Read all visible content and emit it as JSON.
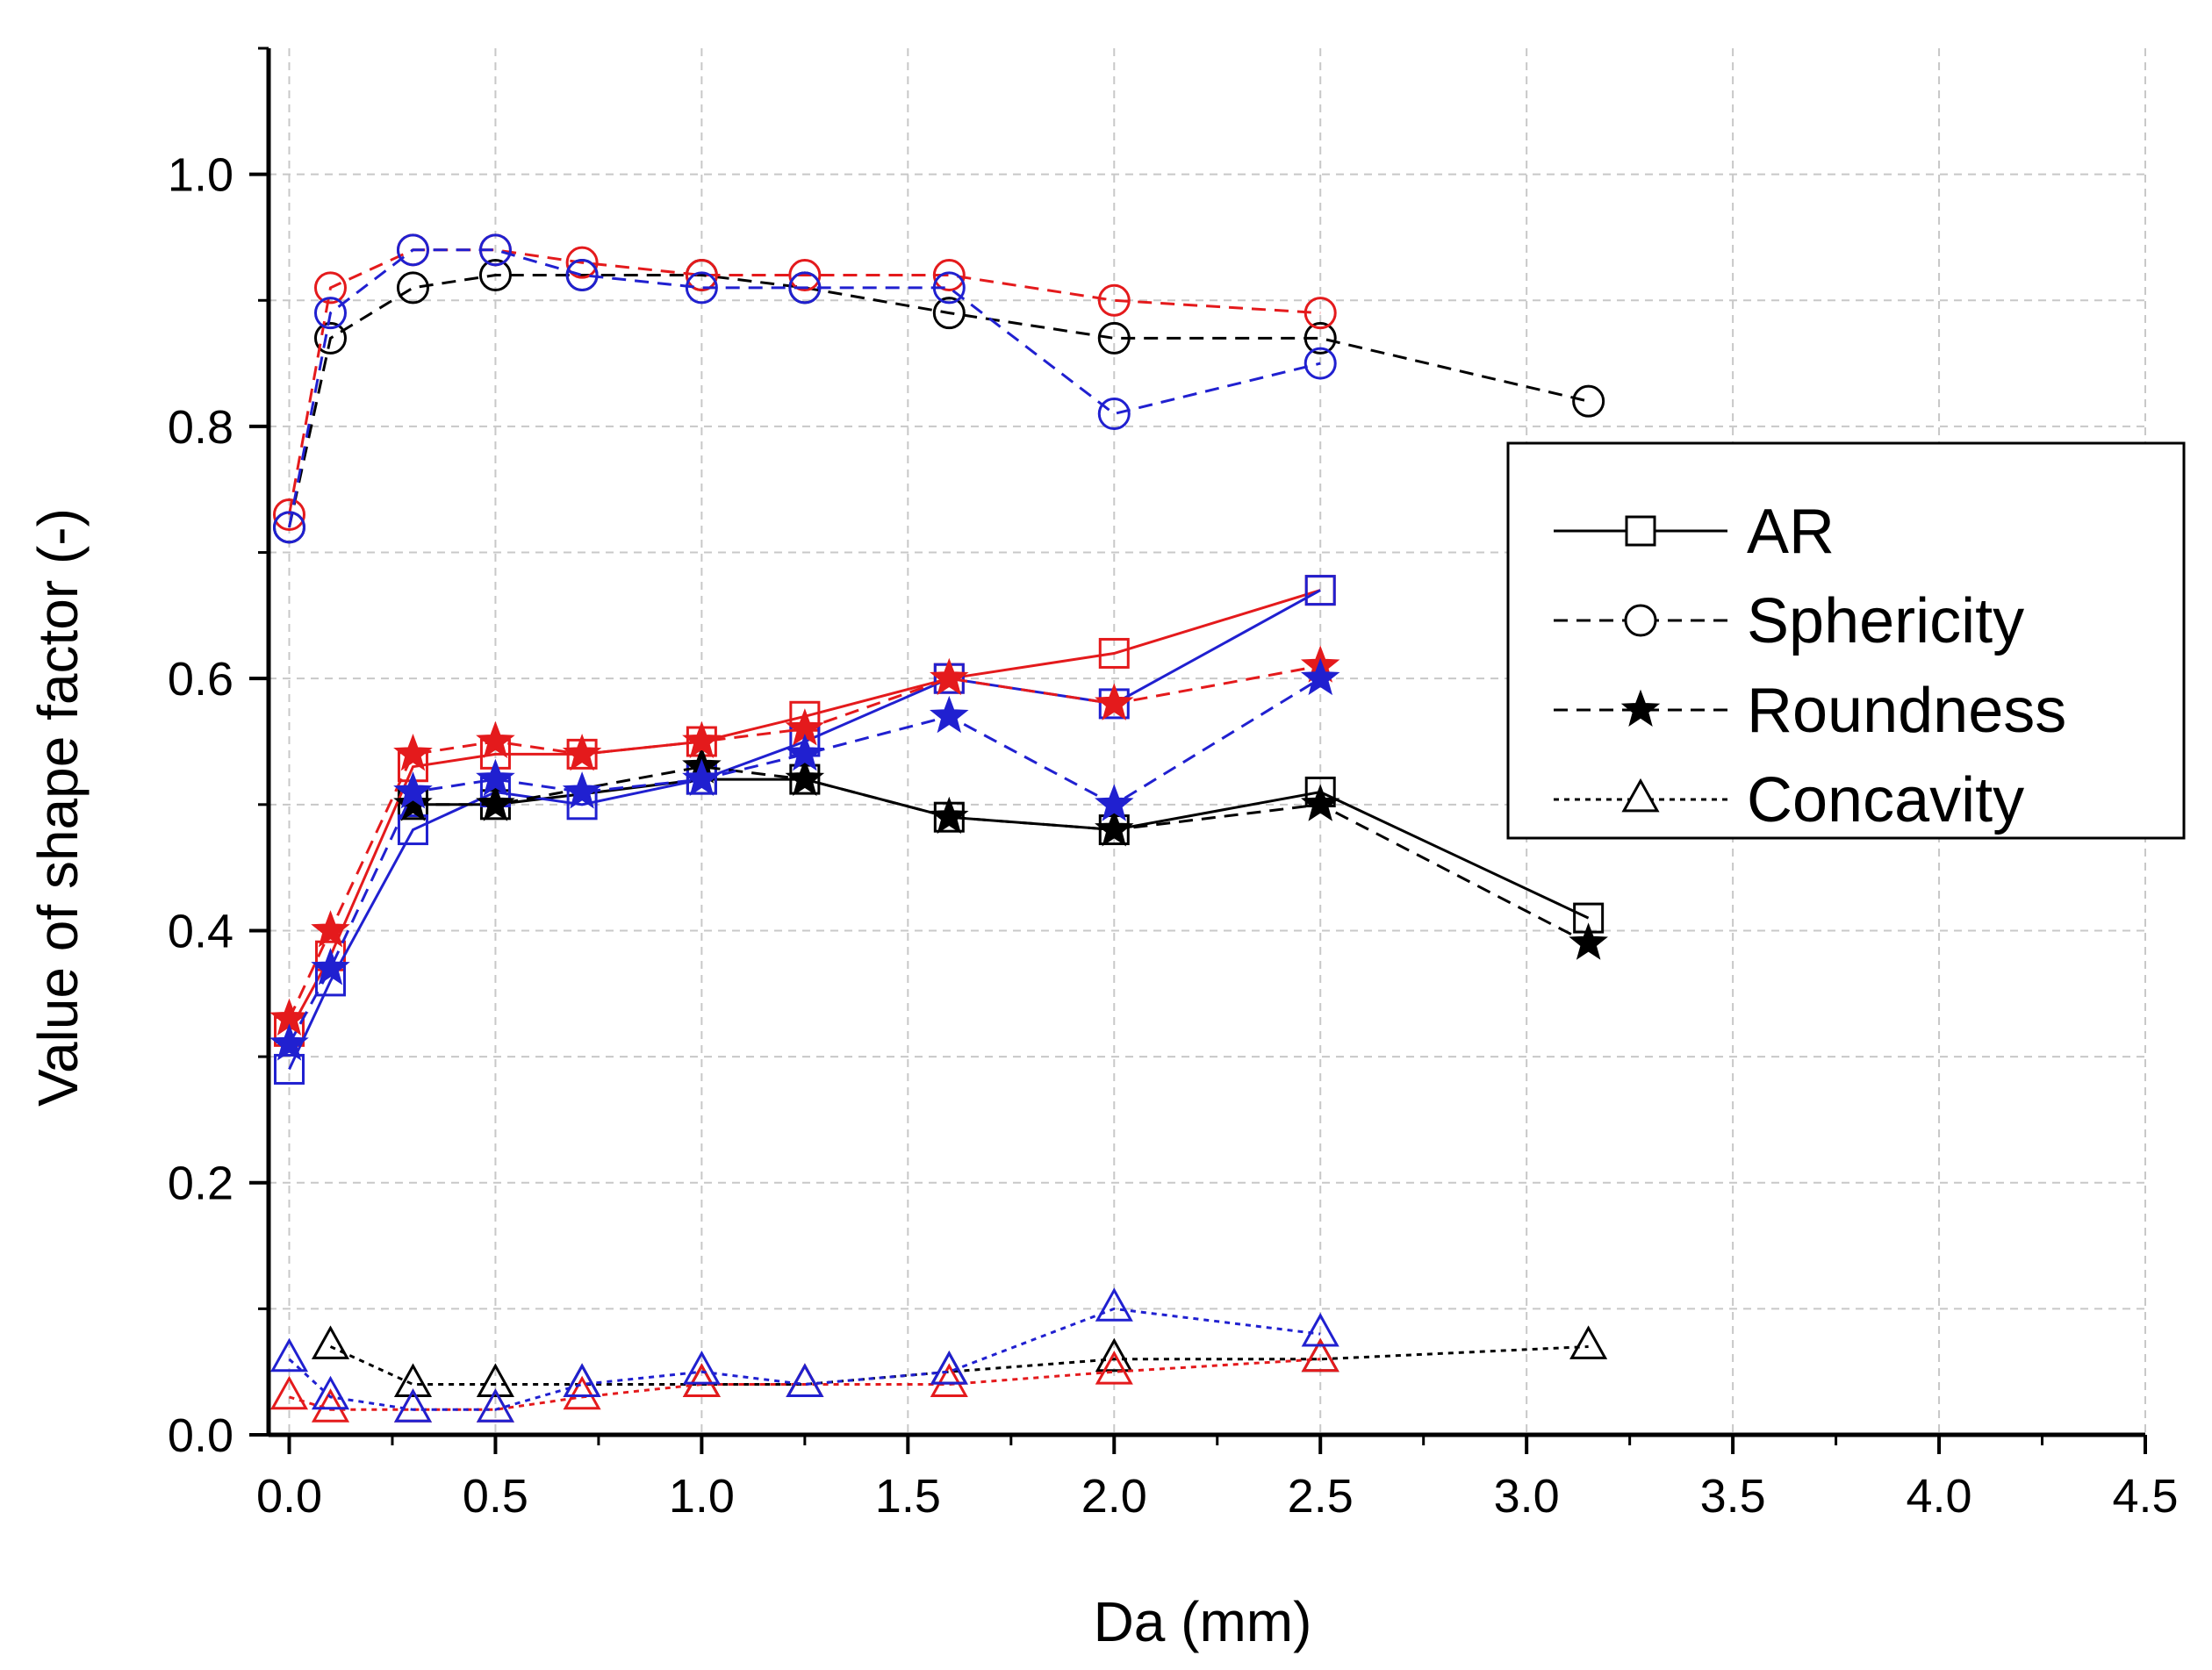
{
  "chart_data": {
    "type": "line",
    "title": "",
    "xlabel": "Da (mm)",
    "ylabel": "Value of shape factor (-)",
    "xlim": [
      -0.05,
      4.5
    ],
    "ylim": [
      0.0,
      1.1
    ],
    "xticks": [
      0.0,
      0.5,
      1.0,
      1.5,
      2.0,
      2.5,
      3.0,
      3.5,
      4.0,
      4.5
    ],
    "xtick_labels": [
      "0.0",
      "0.5",
      "1.0",
      "1.5",
      "2.0",
      "2.5",
      "3.0",
      "3.5",
      "4.0",
      "4.5"
    ],
    "yticks": [
      0.0,
      0.2,
      0.4,
      0.6,
      0.8,
      1.0
    ],
    "ytick_labels": [
      "0.0",
      "0.2",
      "0.4",
      "0.6",
      "0.8",
      "1.0"
    ],
    "grid": true,
    "legend_position": "right",
    "legend": [
      {
        "label": "AR",
        "marker": "square",
        "line": "solid"
      },
      {
        "label": "Sphericity",
        "marker": "circle",
        "line": "dashed"
      },
      {
        "label": "Roundness",
        "marker": "star",
        "line": "dashed"
      },
      {
        "label": "Concavity",
        "marker": "triangle",
        "line": "dotted"
      }
    ],
    "colors": {
      "black": "#000000",
      "red": "#e41a1c",
      "blue": "#2020d0"
    },
    "series": [
      {
        "name": "AR (black)",
        "metric": "AR",
        "color": "black",
        "marker": "square",
        "line": "solid",
        "x": [
          0.3,
          0.5,
          1.0,
          1.25,
          1.6,
          2.0,
          2.5,
          3.15
        ],
        "y": [
          0.5,
          0.5,
          0.52,
          0.52,
          0.49,
          0.48,
          0.51,
          0.41
        ]
      },
      {
        "name": "AR (red)",
        "metric": "AR",
        "color": "red",
        "marker": "square",
        "line": "solid",
        "x": [
          0.0,
          0.1,
          0.3,
          0.5,
          0.71,
          1.0,
          1.25,
          1.6,
          2.0,
          2.5
        ],
        "y": [
          0.32,
          0.38,
          0.53,
          0.54,
          0.54,
          0.55,
          0.57,
          0.6,
          0.62,
          0.67
        ]
      },
      {
        "name": "AR (blue)",
        "metric": "AR",
        "color": "blue",
        "marker": "square",
        "line": "solid",
        "x": [
          0.0,
          0.1,
          0.3,
          0.5,
          0.71,
          1.0,
          1.25,
          1.6,
          2.0,
          2.5
        ],
        "y": [
          0.29,
          0.36,
          0.48,
          0.51,
          0.5,
          0.52,
          0.55,
          0.6,
          0.58,
          0.67
        ]
      },
      {
        "name": "Sphericity (black)",
        "metric": "Sphericity",
        "color": "black",
        "marker": "circle",
        "line": "dashed",
        "x": [
          0.0,
          0.1,
          0.3,
          0.5,
          0.71,
          1.0,
          1.25,
          1.6,
          2.0,
          2.5,
          3.15
        ],
        "y": [
          0.72,
          0.87,
          0.91,
          0.92,
          0.92,
          0.92,
          0.91,
          0.89,
          0.87,
          0.87,
          0.82
        ]
      },
      {
        "name": "Sphericity (red)",
        "metric": "Sphericity",
        "color": "red",
        "marker": "circle",
        "line": "dashed",
        "x": [
          0.0,
          0.1,
          0.3,
          0.5,
          0.71,
          1.0,
          1.25,
          1.6,
          2.0,
          2.5
        ],
        "y": [
          0.73,
          0.91,
          0.94,
          0.94,
          0.93,
          0.92,
          0.92,
          0.92,
          0.9,
          0.89
        ]
      },
      {
        "name": "Sphericity (blue)",
        "metric": "Sphericity",
        "color": "blue",
        "marker": "circle",
        "line": "dashed",
        "x": [
          0.0,
          0.1,
          0.3,
          0.5,
          0.71,
          1.0,
          1.25,
          1.6,
          2.0,
          2.5
        ],
        "y": [
          0.72,
          0.89,
          0.94,
          0.94,
          0.92,
          0.91,
          0.91,
          0.91,
          0.81,
          0.85
        ]
      },
      {
        "name": "Roundness (black)",
        "metric": "Roundness",
        "color": "black",
        "marker": "star",
        "line": "dashed",
        "x": [
          0.3,
          0.5,
          1.0,
          1.25,
          1.6,
          2.0,
          2.5,
          3.15
        ],
        "y": [
          0.5,
          0.5,
          0.53,
          0.52,
          0.49,
          0.48,
          0.5,
          0.39
        ]
      },
      {
        "name": "Roundness (red)",
        "metric": "Roundness",
        "color": "red",
        "marker": "star",
        "line": "dashed",
        "x": [
          0.0,
          0.1,
          0.3,
          0.5,
          0.71,
          1.0,
          1.25,
          1.6,
          2.0,
          2.5
        ],
        "y": [
          0.33,
          0.4,
          0.54,
          0.55,
          0.54,
          0.55,
          0.56,
          0.6,
          0.58,
          0.61
        ]
      },
      {
        "name": "Roundness (blue)",
        "metric": "Roundness",
        "color": "blue",
        "marker": "star",
        "line": "dashed",
        "x": [
          0.0,
          0.1,
          0.3,
          0.5,
          0.71,
          1.0,
          1.25,
          1.6,
          2.0,
          2.5
        ],
        "y": [
          0.31,
          0.37,
          0.51,
          0.52,
          0.51,
          0.52,
          0.54,
          0.57,
          0.5,
          0.6
        ]
      },
      {
        "name": "Concavity (black)",
        "metric": "Concavity",
        "color": "black",
        "marker": "triangle",
        "line": "dotted",
        "x": [
          0.1,
          0.3,
          0.5,
          0.71,
          1.0,
          1.25,
          1.6,
          2.0,
          2.5,
          3.15
        ],
        "y": [
          0.07,
          0.04,
          0.04,
          0.04,
          0.04,
          0.04,
          0.05,
          0.06,
          0.06,
          0.07
        ]
      },
      {
        "name": "Concavity (red)",
        "metric": "Concavity",
        "color": "red",
        "marker": "triangle",
        "line": "dotted",
        "x": [
          0.0,
          0.1,
          0.3,
          0.5,
          0.71,
          1.0,
          1.25,
          1.6,
          2.0,
          2.5
        ],
        "y": [
          0.03,
          0.02,
          0.02,
          0.02,
          0.03,
          0.04,
          0.04,
          0.04,
          0.05,
          0.06
        ]
      },
      {
        "name": "Concavity (blue)",
        "metric": "Concavity",
        "color": "blue",
        "marker": "triangle",
        "line": "dotted",
        "x": [
          0.0,
          0.1,
          0.3,
          0.5,
          0.71,
          1.0,
          1.25,
          1.6,
          2.0,
          2.5
        ],
        "y": [
          0.06,
          0.03,
          0.02,
          0.02,
          0.04,
          0.05,
          0.04,
          0.05,
          0.1,
          0.08
        ]
      }
    ]
  }
}
